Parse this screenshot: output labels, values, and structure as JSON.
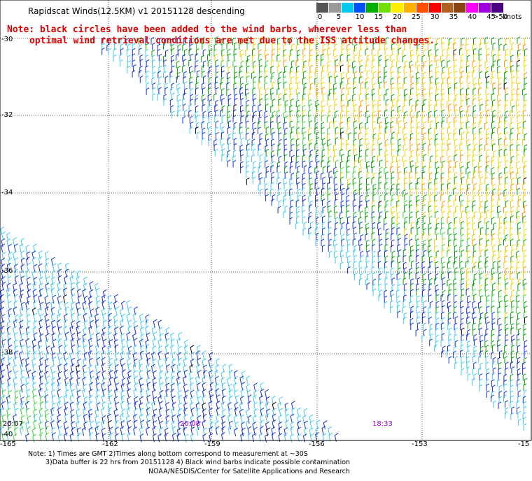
{
  "title": "Rapidscat Winds(12.5KM) v1 20151128 descending",
  "note_line1": "Note: black circles have been added to the wind barbs, wherever less than",
  "note_line2": "optimal wind retrieval conditions are met due to the ISS attitude changes.",
  "legend": {
    "labels": [
      "0",
      "5",
      "10",
      "15",
      "20",
      "25",
      "30",
      "35",
      "40",
      "45",
      ">50"
    ],
    "unit": "knots",
    "colors": [
      "#555555",
      "#9a9a9a",
      "#00c8f0",
      "#0050ff",
      "#00b000",
      "#70e000",
      "#ffee00",
      "#ffb000",
      "#ff5000",
      "#ff0000",
      "#b06020",
      "#8b4513",
      "#ff00ff",
      "#a000e0",
      "#4b0082"
    ]
  },
  "axes": {
    "lat_labels": [
      "-30",
      "-32",
      "-34",
      "-36",
      "-38",
      "-40"
    ],
    "lon_labels": [
      "-165",
      "-162",
      "-159",
      "-156",
      "-153",
      "-15"
    ]
  },
  "time_labels": [
    {
      "text": "20:07",
      "color": "#000000"
    },
    {
      "text": "20:08",
      "color": "#a000e0"
    },
    {
      "text": "18:33",
      "color": "#a000e0"
    }
  ],
  "footer": {
    "line1": "Note: 1) Times are GMT 2)Times along bottom correspond to measurement at ~30S",
    "line2": "3)Data buffer is 22 hrs from 20151128 4) Black wind barbs indicate possible contamination",
    "line3": "NOAA/NESDIS/Center for Satellite Applications and Research"
  },
  "barb_colors": {
    "light_blue": "#40c8f0",
    "blue": "#1030d0",
    "green": "#00a000",
    "light_green": "#40d040",
    "yellow": "#f0d000",
    "orange": "#ff9000",
    "black": "#000000"
  }
}
